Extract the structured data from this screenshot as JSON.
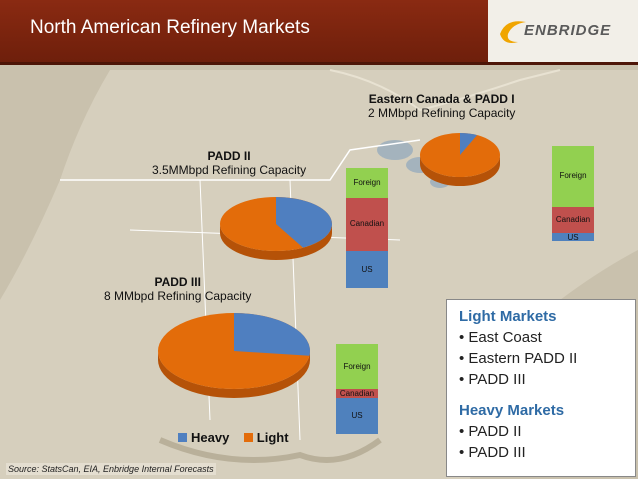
{
  "header": {
    "title": "North American Refinery Markets",
    "logo_text": "ENBRIDGE"
  },
  "colors": {
    "heavy": "#4f7fc0",
    "light": "#e36c0a",
    "foreign": "#92d050",
    "canadian": "#c0504d",
    "us": "#4f81bd",
    "header_bg": "#7a2410",
    "info_head": "#2f6ba5"
  },
  "regions": [
    {
      "name": "Eastern Canada & PADD I",
      "capacity": "2 MMbpd Refining Capacity",
      "heavy_share": 0.07,
      "bar": {
        "foreign": 0.64,
        "canadian": 0.28,
        "us": 0.08,
        "labels": {
          "foreign": "Foreign",
          "canadian": "Canadian",
          "us": "US"
        }
      }
    },
    {
      "name": "PADD II",
      "capacity": "3.5MMbpd Refining Capacity",
      "heavy_share": 0.42,
      "bar": {
        "foreign": 0.25,
        "canadian": 0.44,
        "us": 0.31,
        "labels": {
          "foreign": "Foreign",
          "canadian": "Canadian",
          "us": "US"
        }
      }
    },
    {
      "name": "PADD III",
      "capacity": "8 MMbpd Refining Capacity",
      "heavy_share": 0.27,
      "bar": {
        "foreign": 0.5,
        "canadian": 0.1,
        "us": 0.4,
        "labels": {
          "foreign": "Foreign",
          "canadian": "Canadian",
          "us": "US"
        }
      }
    }
  ],
  "legend": {
    "heavy": "Heavy",
    "light": "Light"
  },
  "info_box": {
    "light_heading": "Light Markets",
    "light_items": [
      "• East Coast",
      "• Eastern PADD II",
      "• PADD III"
    ],
    "heavy_heading": "Heavy Markets",
    "heavy_items": [
      "• PADD II",
      "• PADD III"
    ]
  },
  "source": "Source: StatsCan, EIA, Enbridge Internal Forecasts"
}
